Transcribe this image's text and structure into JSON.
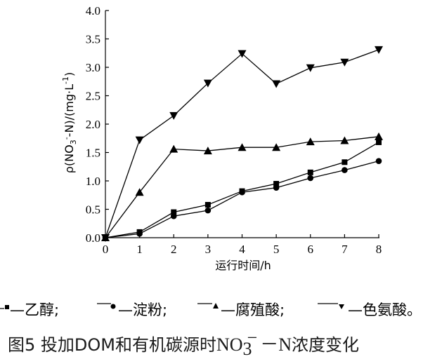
{
  "chart_data": {
    "type": "line",
    "x": [
      0,
      1,
      2,
      3,
      4,
      5,
      6,
      7,
      8
    ],
    "xlabel": "运行时间/h",
    "ylabel": "ρ(NO3⁻-N)/(mg·L⁻¹)",
    "ylabel_parts": {
      "pre": "ρ(NO",
      "sub": "3",
      "sup_minus": "-",
      "post": "-N)/(mg·L",
      "sup": "-1",
      "close": ")"
    },
    "xlim": [
      0,
      8
    ],
    "ylim": [
      0,
      4.0
    ],
    "xticks": [
      "0",
      "1",
      "2",
      "3",
      "4",
      "5",
      "6",
      "7",
      "8"
    ],
    "yticks": [
      "0.0",
      "0.5",
      "1.0",
      "1.5",
      "2.0",
      "2.5",
      "3.0",
      "3.5",
      "4.0"
    ],
    "grid": false,
    "legend_position": "bottom",
    "series": [
      {
        "name": "乙醇",
        "marker": "square",
        "values": [
          0.0,
          0.1,
          0.45,
          0.58,
          0.82,
          0.95,
          1.15,
          1.33,
          1.68
        ]
      },
      {
        "name": "淀粉",
        "marker": "circle",
        "values": [
          0.0,
          0.07,
          0.38,
          0.48,
          0.8,
          0.88,
          1.05,
          1.19,
          1.35
        ]
      },
      {
        "name": "腐殖酸",
        "marker": "triangle-up",
        "values": [
          0.0,
          0.8,
          1.56,
          1.53,
          1.59,
          1.59,
          1.69,
          1.71,
          1.78
        ]
      },
      {
        "name": "色氨酸",
        "marker": "triangle-down",
        "values": [
          0.0,
          1.72,
          2.15,
          2.72,
          3.24,
          2.71,
          2.99,
          3.09,
          3.31
        ]
      }
    ]
  },
  "legend": {
    "items": [
      {
        "dash": "—",
        "label": "乙醇",
        "sep": ";"
      },
      {
        "dash": "—",
        "label": "淀粉",
        "sep": ";"
      },
      {
        "dash": "—",
        "label": "腐殖酸",
        "sep": ";"
      },
      {
        "dash": "—",
        "label": "色氨酸",
        "sep": "。"
      }
    ]
  },
  "caption": {
    "prefix": "图5 投加DOM和有机碳源时",
    "chem": "NO",
    "chem_sub": "3",
    "chem_sup": "−",
    "chem_dash": "－",
    "chem_n": "N",
    "suffix": "浓度变化"
  }
}
